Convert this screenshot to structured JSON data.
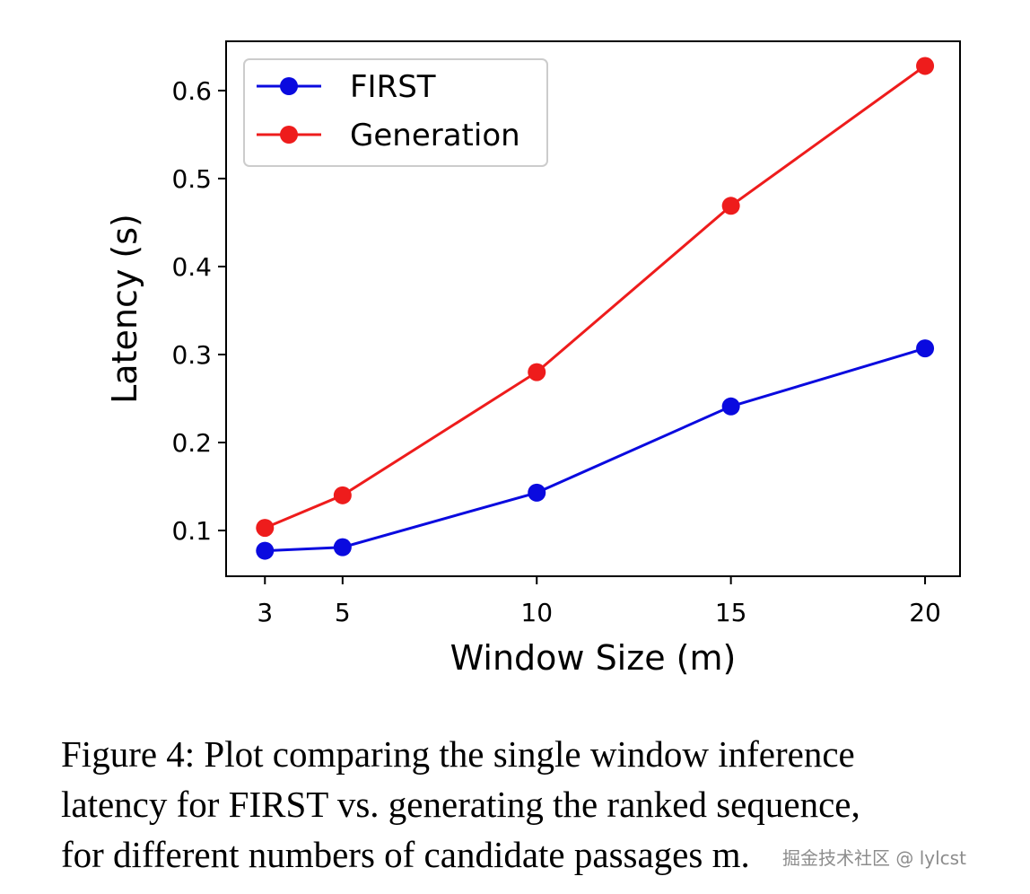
{
  "chart_data": {
    "type": "line",
    "title": "",
    "xlabel": "Window Size (m)",
    "ylabel": "Latency (s)",
    "x": [
      3,
      5,
      10,
      15,
      20
    ],
    "xticks": [
      3,
      5,
      10,
      15,
      20
    ],
    "xlim": [
      2.0,
      20.9
    ],
    "yticks": [
      0.1,
      0.2,
      0.3,
      0.4,
      0.5,
      0.6
    ],
    "ytick_labels": [
      "0.1",
      "0.2",
      "0.3",
      "0.4",
      "0.5",
      "0.6"
    ],
    "ylim": [
      0.048,
      0.656
    ],
    "legend_position": "top-left",
    "series": [
      {
        "name": "FIRST",
        "color": "#0a0adf",
        "values": [
          0.077,
          0.081,
          0.143,
          0.241,
          0.307
        ]
      },
      {
        "name": "Generation",
        "color": "#ee1c1c",
        "values": [
          0.103,
          0.14,
          0.28,
          0.469,
          0.628
        ]
      }
    ]
  },
  "caption": {
    "lines": [
      "Figure 4: Plot comparing the single window inference",
      "latency for FIRST vs. generating the ranked sequence,",
      "for different numbers of candidate passages m."
    ]
  },
  "watermark": "掘金技术社区 @ lylcst"
}
